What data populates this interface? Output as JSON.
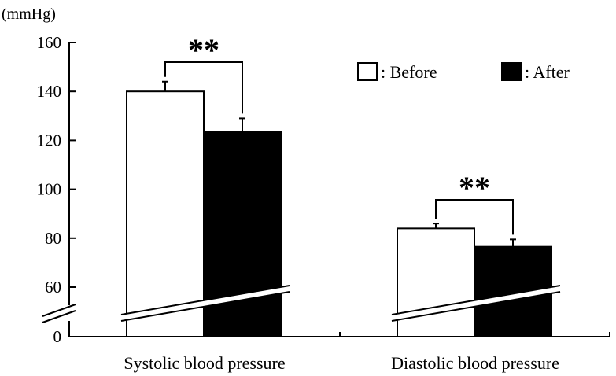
{
  "chart_data": {
    "type": "bar",
    "title": "",
    "ylabel": "(mmHg)",
    "xlabel": "",
    "categories": [
      "Systolic blood pressure",
      "Diastolic blood pressure"
    ],
    "series": [
      {
        "name": ": Before",
        "color": "#ffffff",
        "values": [
          140,
          84
        ],
        "errors": [
          4,
          2
        ]
      },
      {
        "name": ": After",
        "color": "#000000",
        "values": [
          123.5,
          76.5
        ],
        "errors": [
          5.5,
          3
        ]
      }
    ],
    "ylim": [
      0,
      160
    ],
    "axis_break": true,
    "yticks": [
      0,
      60,
      80,
      100,
      120,
      140,
      160
    ],
    "grid": false,
    "legend": "top-right",
    "significance": [
      "**",
      "**"
    ]
  }
}
